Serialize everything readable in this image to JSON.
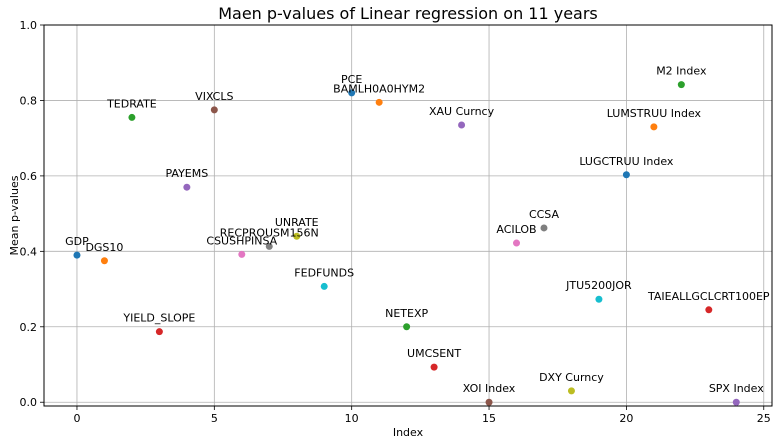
{
  "chart_data": {
    "type": "scatter",
    "title": "Maen p-values of Linear regression on 11 years",
    "xlabel": "Index",
    "ylabel": "Mean p-values",
    "xlim": [
      -1.2,
      25.3
    ],
    "ylim": [
      -0.01,
      1.0
    ],
    "xticks": [
      0,
      5,
      10,
      15,
      20,
      25
    ],
    "yticks": [
      0.0,
      0.2,
      0.4,
      0.6,
      0.8,
      1.0
    ],
    "xtick_labels": [
      "0",
      "5",
      "10",
      "15",
      "20",
      "25"
    ],
    "ytick_labels": [
      "0.0",
      "0.2",
      "0.4",
      "0.6",
      "0.8",
      "1.0"
    ],
    "grid": true,
    "points": [
      {
        "x": 0,
        "y": 0.39,
        "label": "GDP",
        "color": "#1f77b4"
      },
      {
        "x": 1,
        "y": 0.375,
        "label": "DGS10",
        "color": "#ff7f0e"
      },
      {
        "x": 2,
        "y": 0.755,
        "label": "TEDRATE",
        "color": "#2ca02c"
      },
      {
        "x": 3,
        "y": 0.187,
        "label": "YIELD_SLOPE",
        "color": "#d62728"
      },
      {
        "x": 4,
        "y": 0.57,
        "label": "PAYEMS",
        "color": "#9467bd"
      },
      {
        "x": 5,
        "y": 0.775,
        "label": "VIXCLS",
        "color": "#8c564b"
      },
      {
        "x": 6,
        "y": 0.392,
        "label": "CSUSHPINSA",
        "color": "#e377c2"
      },
      {
        "x": 7,
        "y": 0.413,
        "label": "RECPROUSM156N",
        "color": "#7f7f7f"
      },
      {
        "x": 8,
        "y": 0.44,
        "label": "UNRATE",
        "color": "#bcbd22"
      },
      {
        "x": 9,
        "y": 0.307,
        "label": "FEDFUNDS",
        "color": "#17becf"
      },
      {
        "x": 10,
        "y": 0.82,
        "label": "PCE",
        "color": "#1f77b4"
      },
      {
        "x": 11,
        "y": 0.795,
        "label": "BAMLH0A0HYM2",
        "color": "#ff7f0e"
      },
      {
        "x": 12,
        "y": 0.2,
        "label": "NETEXP",
        "color": "#2ca02c"
      },
      {
        "x": 13,
        "y": 0.093,
        "label": "UMCSENT",
        "color": "#d62728"
      },
      {
        "x": 14,
        "y": 0.735,
        "label": "XAU Curncy",
        "color": "#9467bd"
      },
      {
        "x": 15,
        "y": 0.0,
        "label": "XOI Index",
        "color": "#8c564b"
      },
      {
        "x": 16,
        "y": 0.422,
        "label": "ACILOB",
        "color": "#e377c2"
      },
      {
        "x": 17,
        "y": 0.462,
        "label": "CCSA",
        "color": "#7f7f7f"
      },
      {
        "x": 18,
        "y": 0.03,
        "label": "DXY Curncy",
        "color": "#bcbd22"
      },
      {
        "x": 19,
        "y": 0.273,
        "label": "JTU5200JOR",
        "color": "#17becf"
      },
      {
        "x": 20,
        "y": 0.603,
        "label": "LUGCTRUU Index",
        "color": "#1f77b4"
      },
      {
        "x": 21,
        "y": 0.73,
        "label": "LUMSTRUU Index",
        "color": "#ff7f0e"
      },
      {
        "x": 22,
        "y": 0.842,
        "label": "M2 Index",
        "color": "#2ca02c"
      },
      {
        "x": 23,
        "y": 0.245,
        "label": "TAIEALLGCLCRT100EP",
        "color": "#d62728"
      },
      {
        "x": 24,
        "y": 0.0,
        "label": "SPX Index",
        "color": "#9467bd"
      }
    ]
  }
}
